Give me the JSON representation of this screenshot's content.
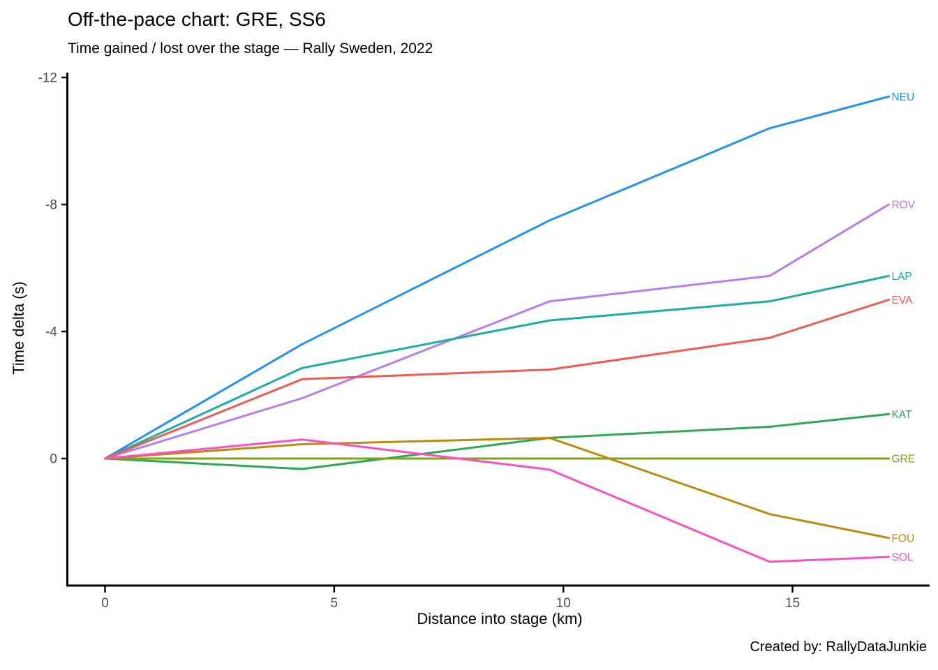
{
  "title": "Off-the-pace chart: GRE, SS6",
  "subtitle": "Time gained / lost over the stage — Rally Sweden, 2022",
  "caption": "Created by: RallyDataJunkie",
  "chart_data": {
    "type": "line",
    "title": "Off-the-pace chart: GRE, SS6",
    "subtitle": "Time gained / lost over the stage — Rally Sweden, 2022",
    "xlabel": "Distance into stage (km)",
    "ylabel": "Time delta (s)",
    "x": [
      0,
      4.3,
      9.7,
      14.5,
      17.1
    ],
    "x_ticks": [
      0,
      5,
      10,
      15
    ],
    "y_ticks": [
      0,
      -4,
      -8,
      -12
    ],
    "xlim": [
      -0.85,
      18.0
    ],
    "ylim": [
      4.0,
      -12.15
    ],
    "y_axis_reversed": true,
    "grid": false,
    "legend": "direct labels at right end of lines",
    "reference_driver": "GRE",
    "series": [
      {
        "name": "NEU",
        "color": "#2193F5",
        "values": [
          0,
          -3.6,
          -7.5,
          -10.4,
          -11.4
        ]
      },
      {
        "name": "ROV",
        "color": "#B87CF4",
        "values": [
          0,
          -1.9,
          -4.95,
          -5.75,
          -8.0
        ]
      },
      {
        "name": "LAP",
        "color": "#1BAFA2",
        "values": [
          0,
          -2.85,
          -4.35,
          -4.95,
          -5.75
        ]
      },
      {
        "name": "EVA",
        "color": "#F25B51",
        "values": [
          0,
          -2.5,
          -2.8,
          -3.8,
          -5.0
        ]
      },
      {
        "name": "KAT",
        "color": "#2EA855",
        "values": [
          0,
          0.33,
          -0.65,
          -1.0,
          -1.4
        ]
      },
      {
        "name": "GRE",
        "color": "#7CA611",
        "values": [
          0,
          0,
          0,
          0,
          0
        ]
      },
      {
        "name": "FOU",
        "color": "#BE8A0B",
        "values": [
          0,
          -0.45,
          -0.65,
          1.75,
          2.5
        ]
      },
      {
        "name": "SOL",
        "color": "#FB50C3",
        "values": [
          0,
          -0.6,
          0.35,
          3.25,
          3.1
        ]
      }
    ]
  }
}
